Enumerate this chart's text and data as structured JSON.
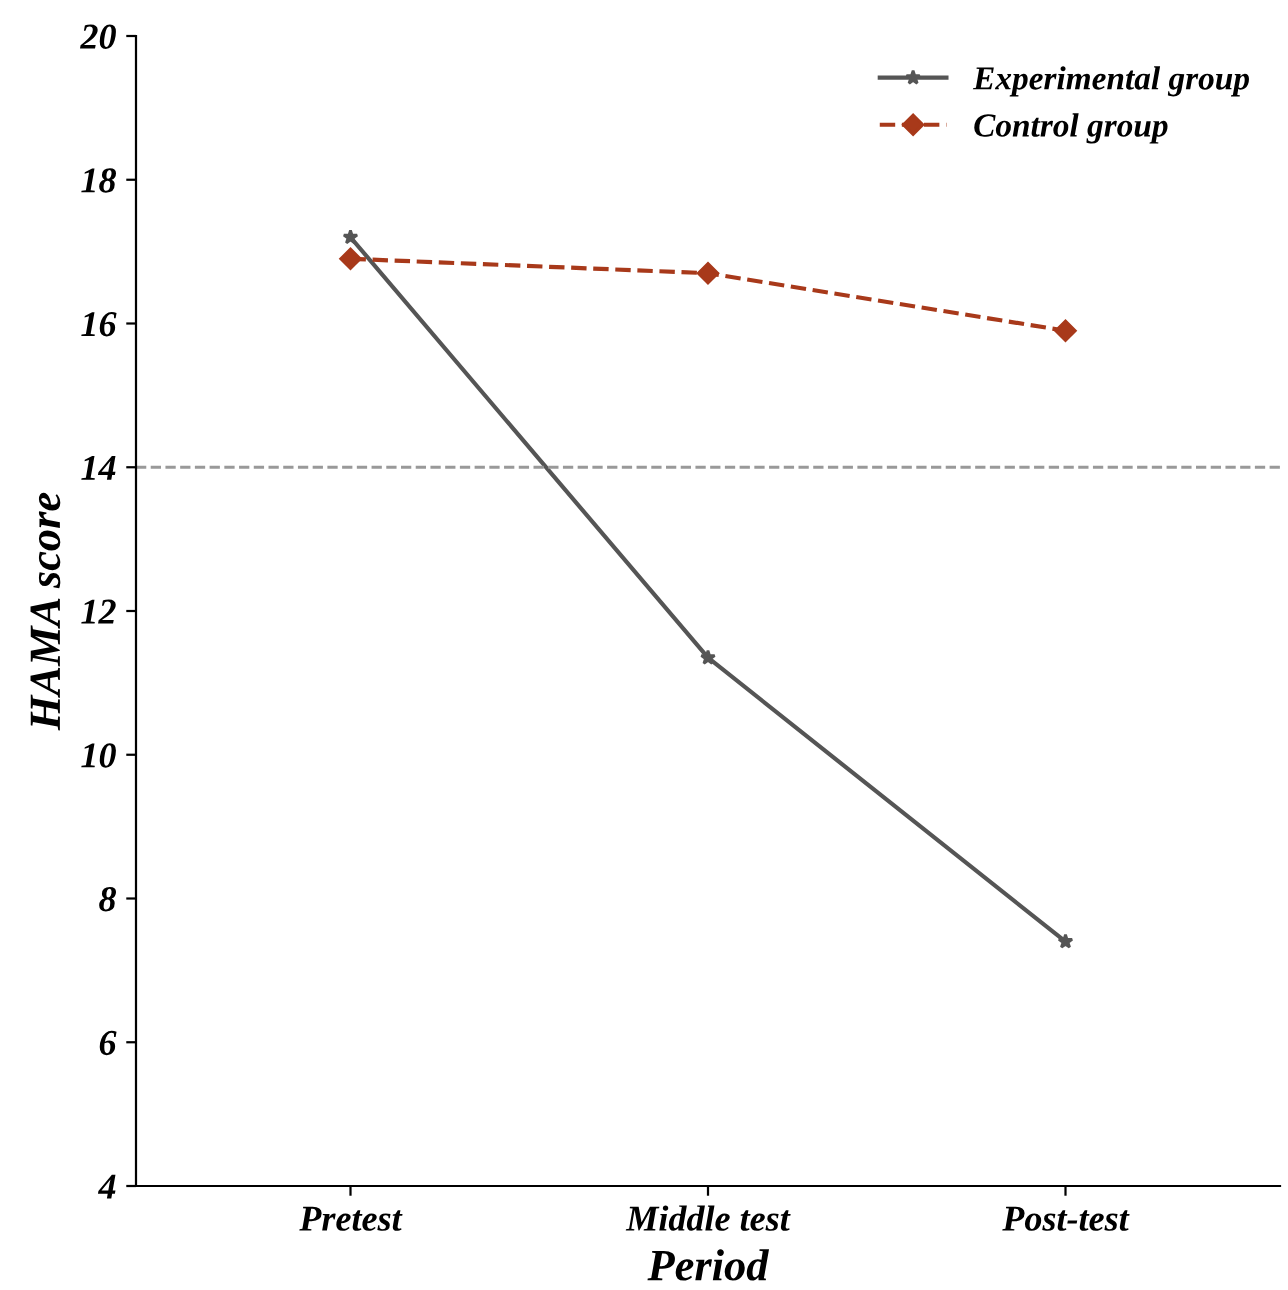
{
  "chart_data": {
    "type": "line",
    "xlabel": "Period",
    "ylabel": "HAMA score",
    "categories": [
      "Pretest",
      "Middle test",
      "Post-test"
    ],
    "series": [
      {
        "name": "Experimental group",
        "color": "#555555",
        "values": [
          17.2,
          11.35,
          7.4
        ],
        "marker": "star",
        "line_style": "solid"
      },
      {
        "name": "Control group",
        "color": "#a8391a",
        "values": [
          16.9,
          16.7,
          15.9
        ],
        "marker": "diamond",
        "line_style": "dashed"
      }
    ],
    "ylim": [
      4,
      20
    ],
    "yticks": [
      4,
      6,
      8,
      10,
      12,
      14,
      16,
      18,
      20
    ],
    "ref_lines": [
      {
        "axis": "y",
        "value": 14,
        "color": "#999999",
        "line_style": "dashed"
      }
    ],
    "grid": false,
    "legend": "top right"
  }
}
